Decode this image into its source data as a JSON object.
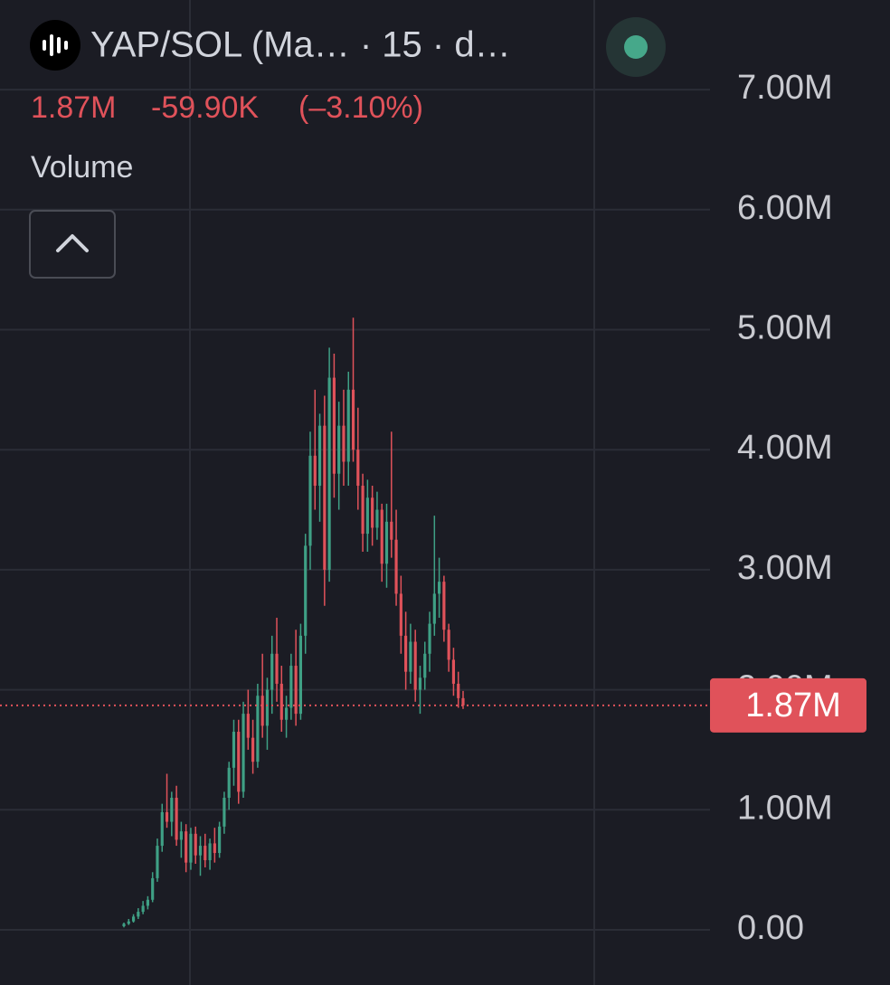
{
  "header": {
    "title": "YAP/SOL (Ma… · 15 · d…",
    "price": "1.87M",
    "change": "-59.90K",
    "change_percent": "(–3.10%)",
    "indicator": "Volume"
  },
  "chart_data": {
    "type": "candlestick",
    "up_color": "#3fa085",
    "down_color": "#e0525a",
    "grid": true,
    "ylim": [
      -460000,
      7747000
    ],
    "yticks": [
      {
        "value": 0,
        "label": "0.00"
      },
      {
        "value": 1000000,
        "label": "1.00M"
      },
      {
        "value": 2000000,
        "label": "2.00M"
      },
      {
        "value": 3000000,
        "label": "3.00M"
      },
      {
        "value": 4000000,
        "label": "4.00M"
      },
      {
        "value": 5000000,
        "label": "5.00M"
      },
      {
        "value": 6000000,
        "label": "6.00M"
      },
      {
        "value": 7000000,
        "label": "7.00M"
      }
    ],
    "last_price": {
      "value": 1870000,
      "label": "1.87M"
    },
    "open": [
      30000,
      50000,
      70000,
      110000,
      150000,
      200000,
      250000,
      430000,
      700000,
      980000,
      900000,
      1100000,
      750000,
      820000,
      560000,
      800000,
      620000,
      700000,
      580000,
      720000,
      640000,
      860000,
      1100000,
      1350000,
      1650000,
      1150000,
      1800000,
      1600000,
      1400000,
      1950000,
      1700000,
      2000000,
      2300000,
      2050000,
      1750000,
      1850000,
      2200000,
      1800000,
      2450000,
      3200000,
      3950000,
      3700000,
      4200000,
      3000000,
      4600000,
      3800000,
      4200000,
      3900000,
      4500000,
      4000000,
      3700000,
      3300000,
      3600000,
      3350000,
      3500000,
      3050000,
      3400000,
      3250000,
      2800000,
      2450000,
      2150000,
      2400000,
      2000000,
      2100000,
      2300000,
      2550000,
      2800000,
      2900000,
      2500000,
      2250000,
      2050000,
      1930000
    ],
    "high": [
      60000,
      90000,
      130000,
      180000,
      240000,
      280000,
      480000,
      760000,
      1050000,
      1300000,
      1150000,
      1200000,
      900000,
      880000,
      850000,
      860000,
      780000,
      800000,
      760000,
      850000,
      900000,
      1150000,
      1400000,
      1750000,
      1750000,
      1900000,
      2000000,
      1750000,
      2050000,
      2300000,
      2100000,
      2450000,
      2600000,
      2200000,
      1950000,
      2300000,
      2500000,
      2550000,
      3300000,
      4150000,
      4500000,
      4300000,
      4450000,
      4850000,
      4800000,
      4400000,
      4500000,
      4650000,
      5100000,
      4350000,
      3800000,
      3750000,
      3700000,
      3650000,
      3550000,
      3550000,
      4150000,
      3500000,
      2950000,
      2650000,
      2550000,
      2500000,
      2200000,
      2400000,
      2650000,
      3450000,
      3100000,
      2950000,
      2550000,
      2350000,
      2150000,
      1990000
    ],
    "low": [
      20000,
      40000,
      60000,
      90000,
      130000,
      170000,
      230000,
      400000,
      650000,
      850000,
      780000,
      700000,
      600000,
      480000,
      500000,
      550000,
      450000,
      520000,
      500000,
      560000,
      600000,
      800000,
      1000000,
      1200000,
      1050000,
      1100000,
      1500000,
      1300000,
      1350000,
      1600000,
      1500000,
      1800000,
      1900000,
      1650000,
      1600000,
      1750000,
      1700000,
      1750000,
      2300000,
      3000000,
      3500000,
      3400000,
      2700000,
      2900000,
      3600000,
      3500000,
      3700000,
      3700000,
      3900000,
      3500000,
      3150000,
      3150000,
      3200000,
      3250000,
      2900000,
      2850000,
      3100000,
      2700000,
      2300000,
      2000000,
      2050000,
      1900000,
      1800000,
      2000000,
      2150000,
      2450000,
      2600000,
      2400000,
      2150000,
      1950000,
      1850000,
      1840000
    ],
    "close": [
      50000,
      70000,
      110000,
      150000,
      200000,
      250000,
      430000,
      700000,
      980000,
      900000,
      1100000,
      750000,
      820000,
      560000,
      800000,
      620000,
      700000,
      580000,
      720000,
      640000,
      860000,
      1100000,
      1350000,
      1650000,
      1150000,
      1800000,
      1600000,
      1400000,
      1950000,
      1700000,
      2000000,
      2300000,
      2050000,
      1750000,
      1850000,
      2200000,
      1800000,
      2450000,
      3200000,
      3950000,
      3700000,
      4200000,
      3000000,
      4600000,
      3800000,
      4200000,
      3900000,
      4500000,
      4000000,
      3700000,
      3300000,
      3600000,
      3350000,
      3500000,
      3050000,
      3400000,
      3250000,
      2800000,
      2450000,
      2150000,
      2400000,
      2000000,
      2100000,
      2300000,
      2550000,
      2800000,
      2900000,
      2500000,
      2250000,
      2050000,
      1930000,
      1870000
    ]
  }
}
